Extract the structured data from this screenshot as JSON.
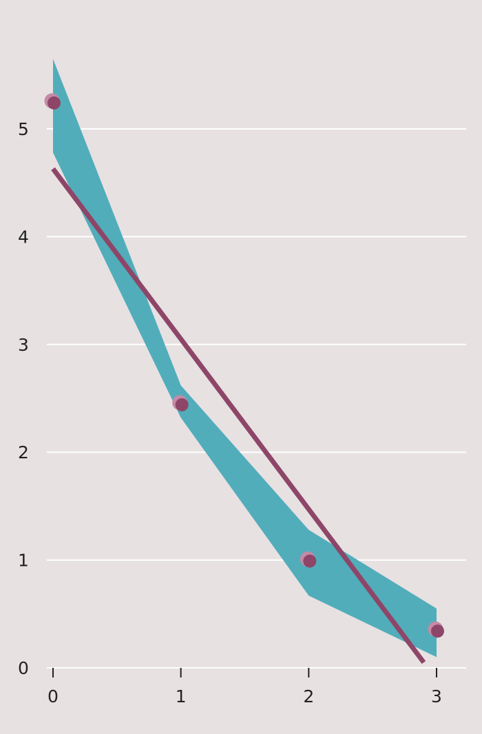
{
  "chart_data": {
    "type": "line",
    "title": "",
    "xlabel": "",
    "ylabel": "",
    "xlim": [
      0,
      3
    ],
    "ylim": [
      0,
      5.5
    ],
    "grid": "horizontal",
    "x_ticks": [
      "0",
      "1",
      "2",
      "3"
    ],
    "y_ticks": [
      "0",
      "1",
      "2",
      "3",
      "4",
      "5"
    ],
    "band": {
      "x": [
        0,
        1,
        2,
        3
      ],
      "upper": [
        5.65,
        2.62,
        1.28,
        0.55
      ],
      "lower": [
        4.78,
        2.32,
        0.67,
        0.1
      ]
    },
    "points": {
      "x": [
        0,
        1,
        2,
        3
      ],
      "y": [
        5.25,
        2.45,
        1.0,
        0.35
      ]
    },
    "trend_line": {
      "x": [
        0,
        2.9
      ],
      "y": [
        4.63,
        0.05
      ]
    },
    "colors": {
      "background": "#e7e1e2",
      "band": "#52adbb",
      "line": "#8e4668",
      "points": "#8e4668",
      "points_highlight": "#c48aa6",
      "grid": "#ffffff",
      "axis": "#222222"
    }
  }
}
